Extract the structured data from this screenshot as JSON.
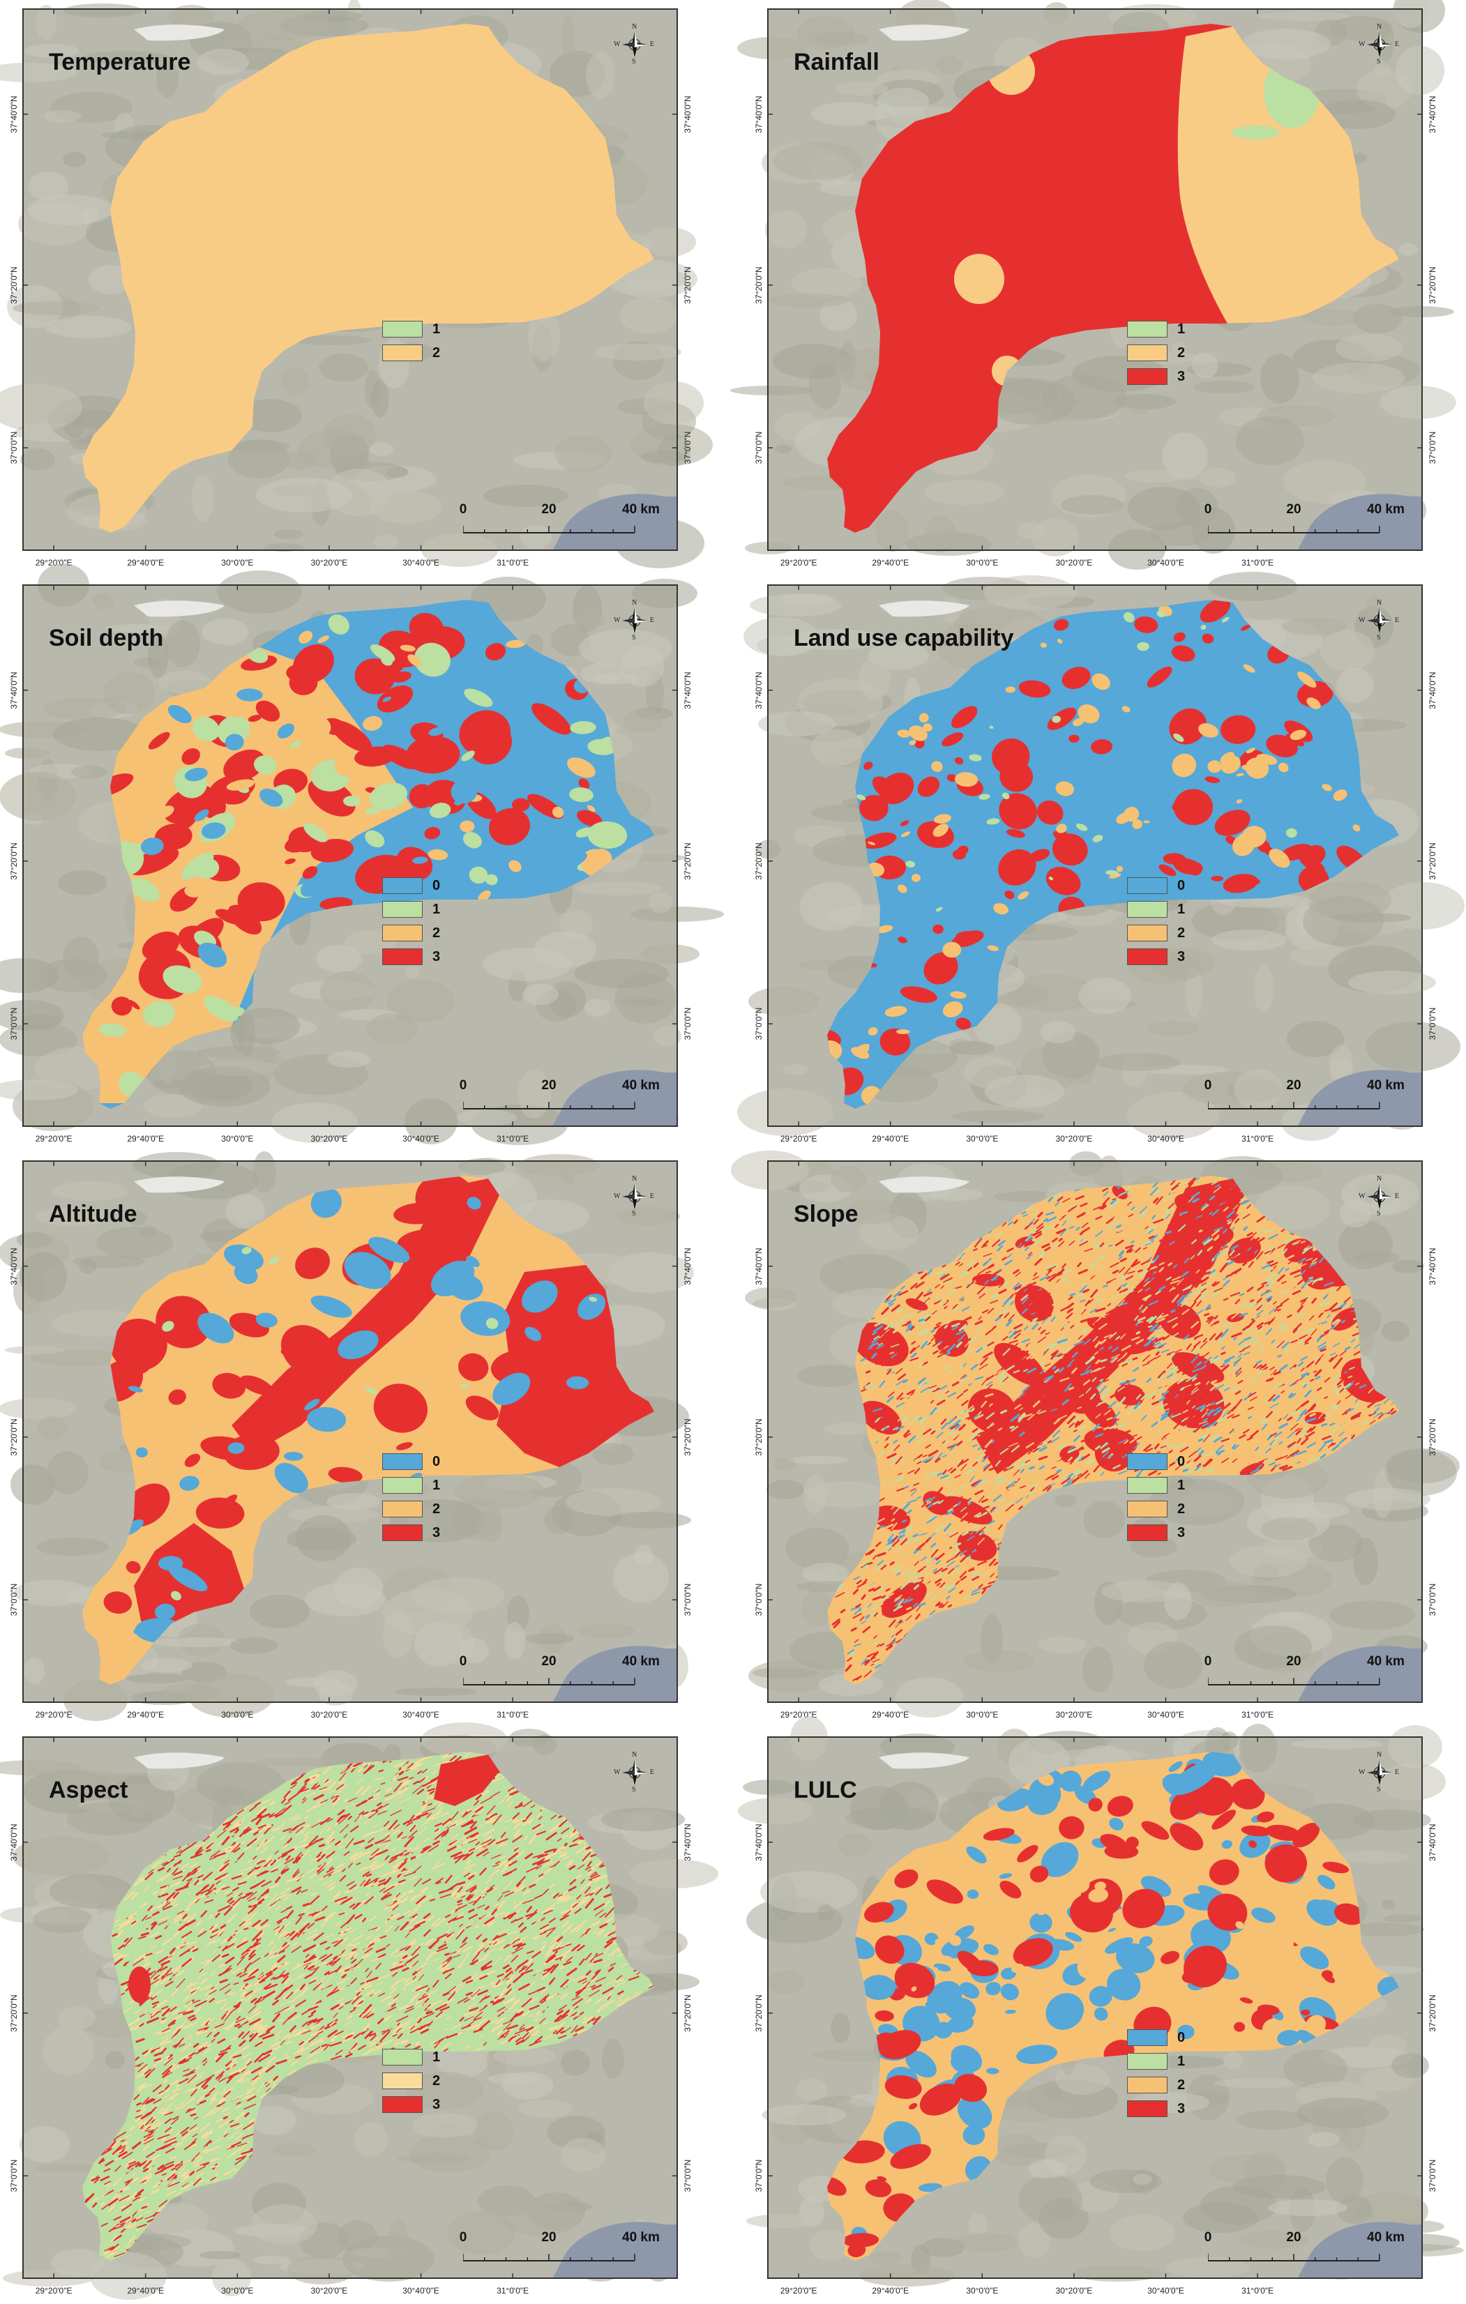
{
  "colors": {
    "class0": "#55a8d8",
    "class1": "#bcdfa2",
    "class2": "#f7c174",
    "class3": "#e63030",
    "aspect2": "#f9dc9a",
    "temp2": "#f9cc86",
    "basemap": "#b9b8ac",
    "frame": "#333333"
  },
  "axes": {
    "lon_ticks": [
      "29°20'0\"E",
      "29°40'0\"E",
      "30°0'0\"E",
      "30°20'0\"E",
      "30°40'0\"E",
      "31°0'0\"E"
    ],
    "lat_ticks": [
      "37°40'0\"N",
      "37°20'0\"N",
      "37°0'0\"N"
    ]
  },
  "north_arrow": {
    "n": "N",
    "s": "S",
    "e": "E",
    "w": "W"
  },
  "scalebar": {
    "labels": [
      "0",
      "20",
      "40 km"
    ]
  },
  "panels": [
    {
      "title": "Temperature",
      "pattern": "temperature",
      "legend": [
        {
          "label": "1",
          "color": "class1"
        },
        {
          "label": "2",
          "color": "temp2"
        }
      ]
    },
    {
      "title": "Rainfall",
      "pattern": "rainfall",
      "legend": [
        {
          "label": "1",
          "color": "class1"
        },
        {
          "label": "2",
          "color": "temp2"
        },
        {
          "label": "3",
          "color": "class3"
        }
      ]
    },
    {
      "title": "Soil depth",
      "pattern": "soil",
      "legend": [
        {
          "label": "0",
          "color": "class0"
        },
        {
          "label": "1",
          "color": "class1"
        },
        {
          "label": "2",
          "color": "class2"
        },
        {
          "label": "3",
          "color": "class3"
        }
      ]
    },
    {
      "title": "Land use capability",
      "pattern": "landuse",
      "legend": [
        {
          "label": "0",
          "color": "class0"
        },
        {
          "label": "1",
          "color": "class1"
        },
        {
          "label": "2",
          "color": "class2"
        },
        {
          "label": "3",
          "color": "class3"
        }
      ]
    },
    {
      "title": "Altitude",
      "pattern": "altitude",
      "legend": [
        {
          "label": "0",
          "color": "class0"
        },
        {
          "label": "1",
          "color": "class1"
        },
        {
          "label": "2",
          "color": "class2"
        },
        {
          "label": "3",
          "color": "class3"
        }
      ]
    },
    {
      "title": "Slope",
      "pattern": "slope",
      "legend": [
        {
          "label": "0",
          "color": "class0"
        },
        {
          "label": "1",
          "color": "class1"
        },
        {
          "label": "2",
          "color": "class2"
        },
        {
          "label": "3",
          "color": "class3"
        }
      ]
    },
    {
      "title": "Aspect",
      "pattern": "aspect",
      "legend": [
        {
          "label": "1",
          "color": "class1"
        },
        {
          "label": "2",
          "color": "aspect2"
        },
        {
          "label": "3",
          "color": "class3"
        }
      ]
    },
    {
      "title": "LULC",
      "pattern": "lulc",
      "legend": [
        {
          "label": "0",
          "color": "class0"
        },
        {
          "label": "1",
          "color": "class1"
        },
        {
          "label": "2",
          "color": "class2"
        },
        {
          "label": "3",
          "color": "class3"
        }
      ]
    }
  ]
}
